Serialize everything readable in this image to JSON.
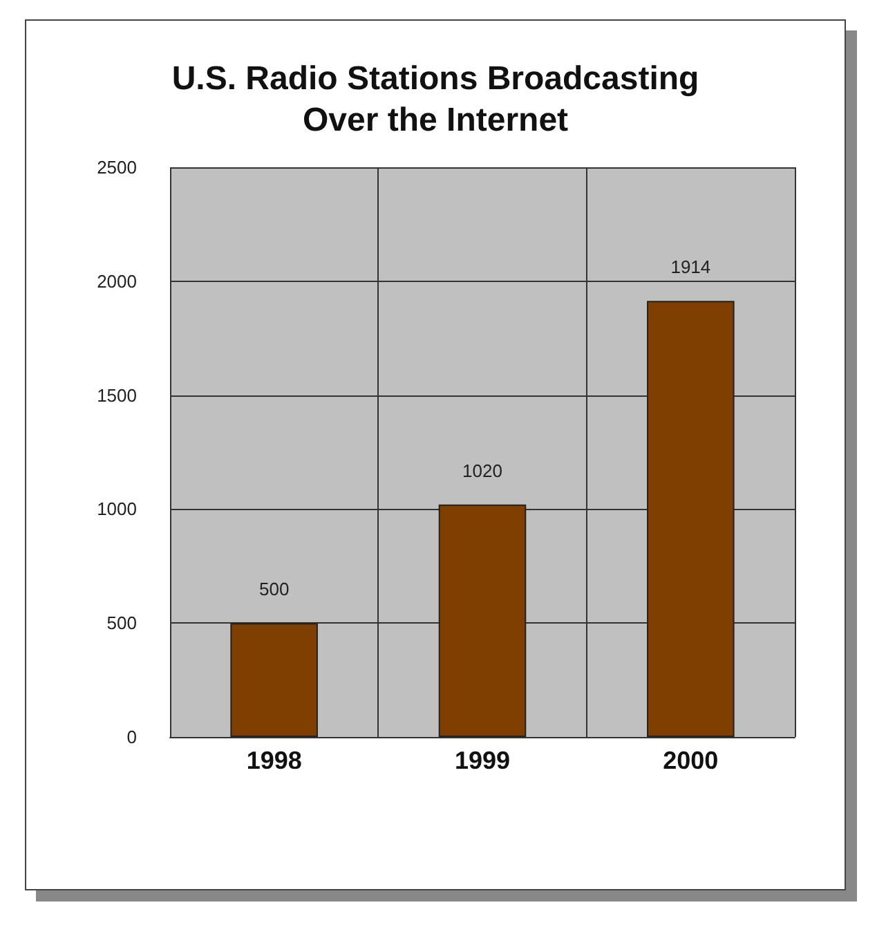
{
  "chart_data": {
    "type": "bar",
    "title": "U.S. Radio Stations Broadcasting\nOver the Internet",
    "categories": [
      "1998",
      "1999",
      "2000"
    ],
    "values": [
      500,
      1020,
      1914
    ],
    "color": "#7f3f00",
    "ylim": [
      0,
      2500
    ],
    "yticks": [
      0,
      500,
      1000,
      1500,
      2000,
      2500
    ],
    "grid": true,
    "data_labels": true
  }
}
